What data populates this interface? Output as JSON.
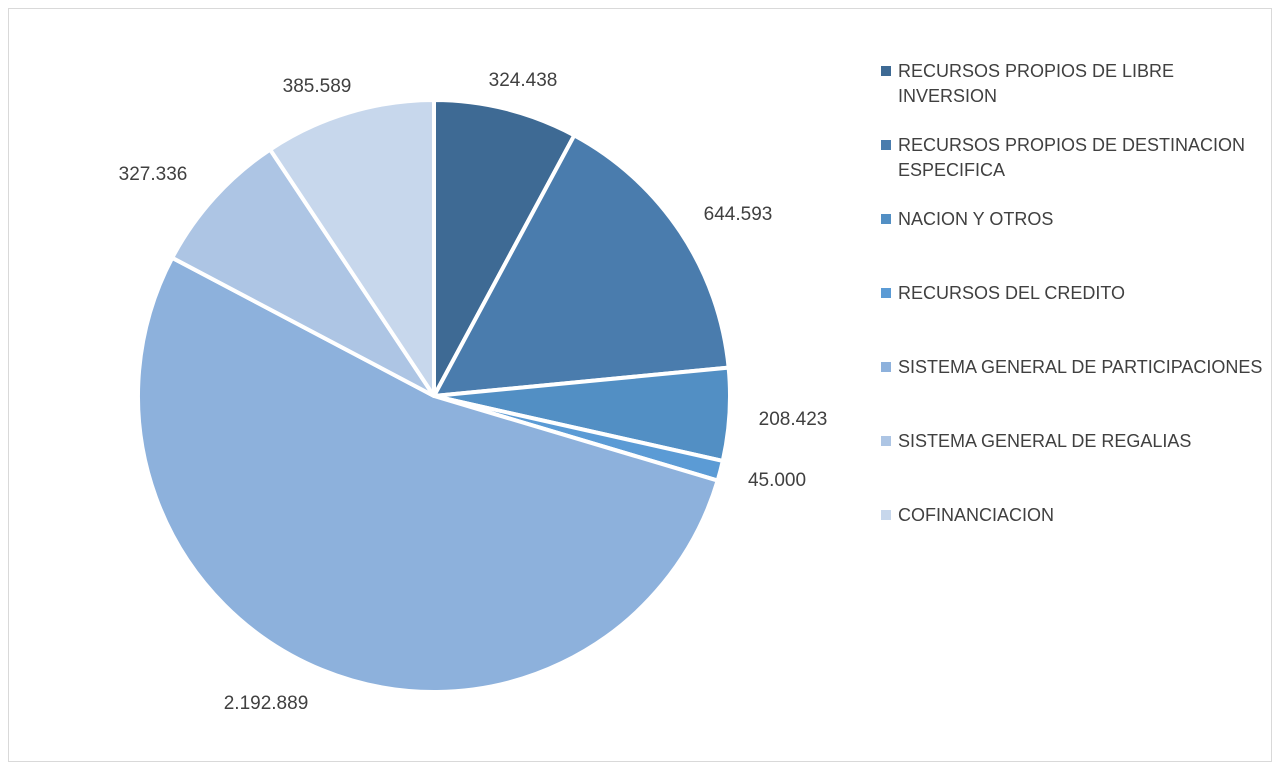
{
  "chart_data": {
    "type": "pie",
    "title": "",
    "categories": [
      "RECURSOS PROPIOS DE LIBRE INVERSION",
      "RECURSOS PROPIOS DE DESTINACION ESPECIFICA",
      "NACION Y OTROS",
      "RECURSOS DEL CREDITO",
      "SISTEMA GENERAL DE PARTICIPACIONES",
      "SISTEMA GENERAL DE REGALIAS",
      "COFINANCIACION"
    ],
    "values": [
      324438,
      644593,
      208423,
      45000,
      2192889,
      327336,
      385589
    ],
    "data_labels": [
      "324.438",
      "644.593",
      "208.423",
      "45.000",
      "2.192.889",
      "327.336",
      "385.589"
    ],
    "colors": [
      "#3e6a94",
      "#4a7cad",
      "#528fc4",
      "#5b9bd5",
      "#8db1dc",
      "#adc5e4",
      "#c7d7ec"
    ],
    "legend_position": "right"
  }
}
